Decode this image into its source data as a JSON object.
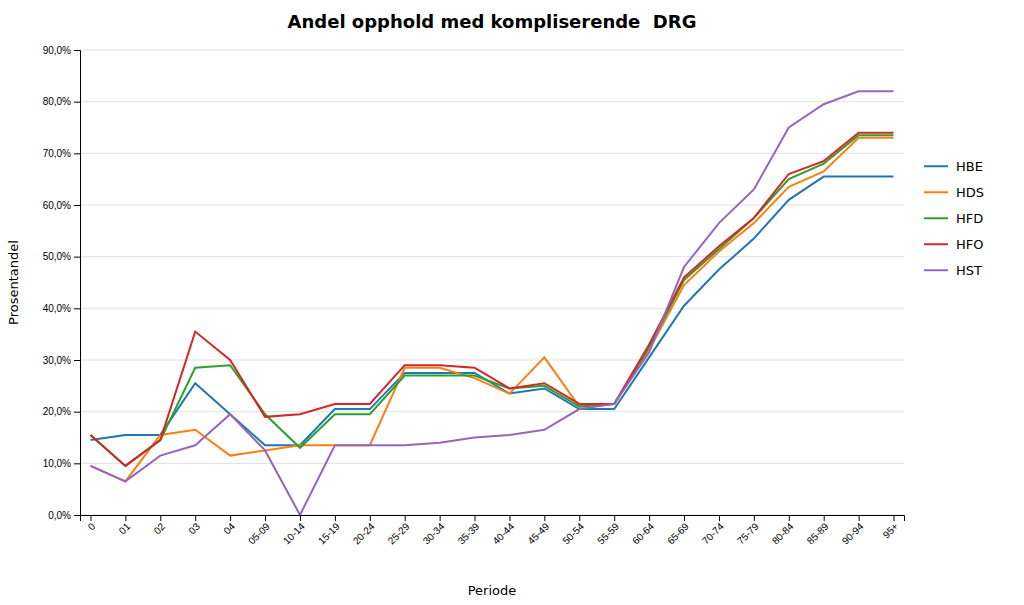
{
  "chart_data": {
    "type": "line",
    "title": "Andel opphold med kompliserende  DRG",
    "x_label": "Periode",
    "y_label": "Prosentandel",
    "categories": [
      "0",
      "01",
      "02",
      "03",
      "04",
      "05-09",
      "10-14",
      "15-19",
      "20-24",
      "25-29",
      "30-34",
      "35-39",
      "40-44",
      "45-49",
      "50-54",
      "55-59",
      "60-64",
      "65-69",
      "70-74",
      "75-79",
      "80-84",
      "85-89",
      "90-94",
      "95+"
    ],
    "series": [
      {
        "name": "HBE",
        "values": [
          0.145,
          0.155,
          0.155,
          0.255,
          0.195,
          0.135,
          0.135,
          0.205,
          0.205,
          0.275,
          0.275,
          0.275,
          0.235,
          0.245,
          0.205,
          0.205,
          0.305,
          0.405,
          0.475,
          0.535,
          0.61,
          0.655,
          0.655,
          0.655
        ]
      },
      {
        "name": "HDS",
        "values": [
          0.095,
          0.065,
          0.155,
          0.165,
          0.115,
          0.125,
          0.135,
          0.135,
          0.135,
          0.285,
          0.285,
          0.265,
          0.235,
          0.305,
          0.21,
          0.215,
          0.32,
          0.445,
          0.51,
          0.565,
          0.635,
          0.665,
          0.73,
          0.73
        ]
      },
      {
        "name": "HFD",
        "values": [
          0.155,
          0.095,
          0.145,
          0.285,
          0.29,
          0.195,
          0.13,
          0.195,
          0.195,
          0.27,
          0.27,
          0.27,
          0.245,
          0.25,
          0.21,
          0.215,
          0.325,
          0.455,
          0.515,
          0.575,
          0.65,
          0.68,
          0.735,
          0.735
        ]
      },
      {
        "name": "HFO",
        "values": [
          0.155,
          0.095,
          0.145,
          0.355,
          0.3,
          0.19,
          0.195,
          0.215,
          0.215,
          0.29,
          0.29,
          0.285,
          0.245,
          0.255,
          0.215,
          0.215,
          0.33,
          0.46,
          0.52,
          0.575,
          0.66,
          0.685,
          0.74,
          0.74
        ]
      },
      {
        "name": "HST",
        "values": [
          0.095,
          0.065,
          0.115,
          0.135,
          0.195,
          0.125,
          0.0,
          0.135,
          0.135,
          0.135,
          0.14,
          0.15,
          0.155,
          0.165,
          0.205,
          0.215,
          0.315,
          0.48,
          0.565,
          0.63,
          0.75,
          0.795,
          0.82,
          0.82
        ]
      }
    ],
    "ylim": [
      0.0,
      0.9
    ],
    "yticks": [
      {
        "value": 0.0,
        "label": "0,0%"
      },
      {
        "value": 0.1,
        "label": "10,0%"
      },
      {
        "value": 0.2,
        "label": "20,0%"
      },
      {
        "value": 0.3,
        "label": "30,0%"
      },
      {
        "value": 0.4,
        "label": "40,0%"
      },
      {
        "value": 0.5,
        "label": "50,0%"
      },
      {
        "value": 0.6,
        "label": "60,0%"
      },
      {
        "value": 0.7,
        "label": "70,0%"
      },
      {
        "value": 0.8,
        "label": "80,0%"
      },
      {
        "value": 0.9,
        "label": "90,0%"
      }
    ],
    "grid": true,
    "legend": "right"
  }
}
